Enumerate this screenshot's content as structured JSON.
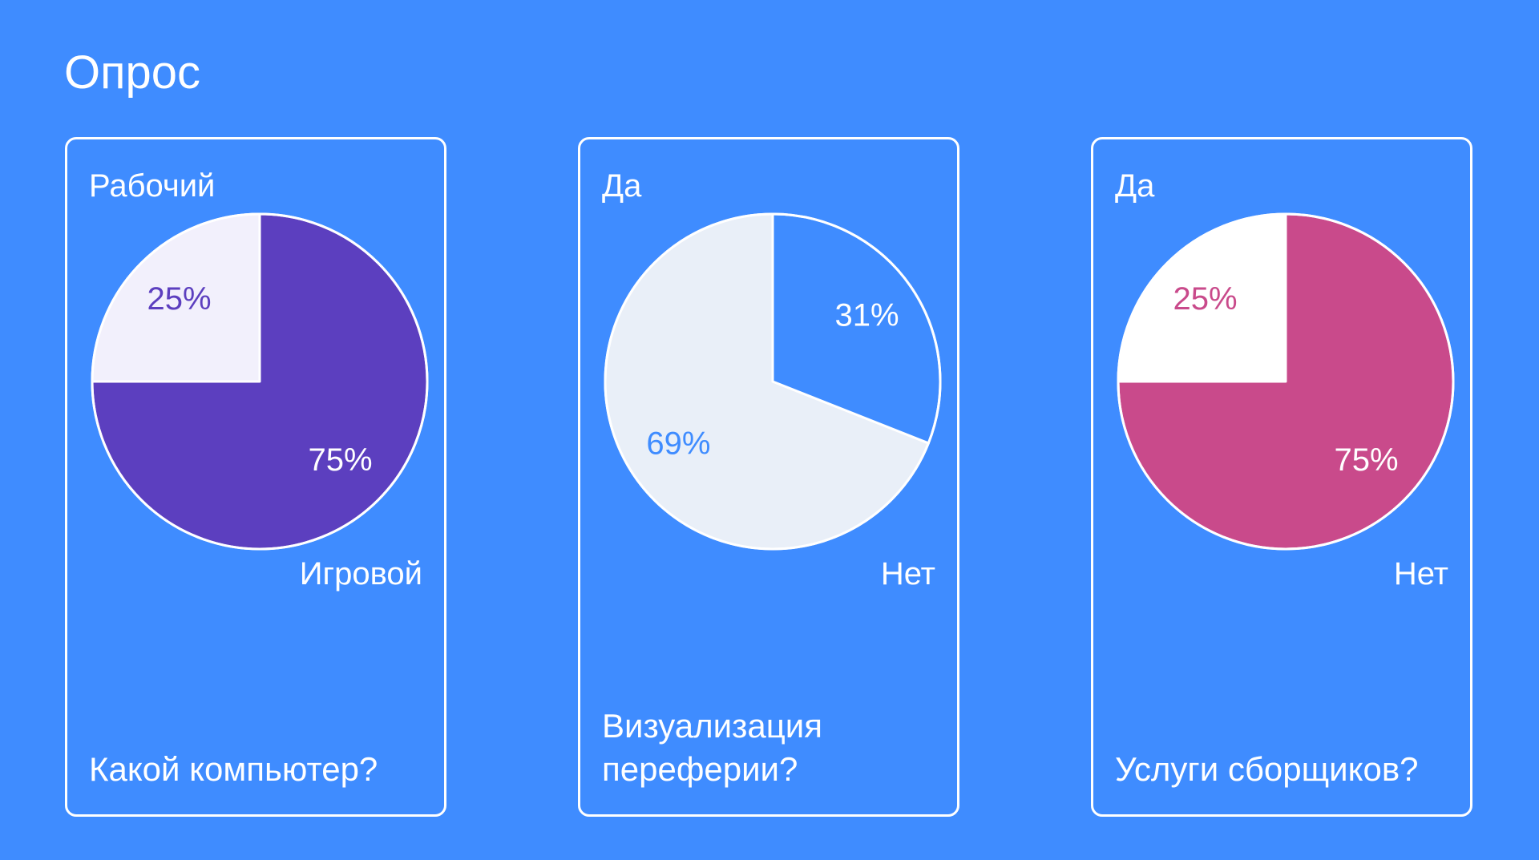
{
  "page": {
    "title": "Опрос"
  },
  "chart_data": [
    {
      "type": "pie",
      "categories": [
        "Рабочий",
        "Игровой"
      ],
      "values": [
        25,
        75
      ],
      "value_labels": [
        "25%",
        "75%"
      ],
      "colors": [
        "#f2f0fc",
        "#5c3fbf"
      ],
      "label_colors": [
        "#5c3fbf",
        "#ffffff"
      ],
      "question": "Какой компьютер?"
    },
    {
      "type": "pie",
      "categories": [
        "Да",
        "Нет"
      ],
      "values": [
        69,
        31
      ],
      "value_labels": [
        "69%",
        "31%"
      ],
      "colors": [
        "#e9eff8",
        "#3f8cff"
      ],
      "label_colors": [
        "#3f8cff",
        "#ffffff"
      ],
      "question": "Визуализация переферии?"
    },
    {
      "type": "pie",
      "categories": [
        "Да",
        "Нет"
      ],
      "values": [
        25,
        75
      ],
      "value_labels": [
        "25%",
        "75%"
      ],
      "colors": [
        "#ffffff",
        "#c94a8b"
      ],
      "label_colors": [
        "#c94a8b",
        "#ffffff"
      ],
      "question": "Услуги сборщиков?"
    }
  ]
}
